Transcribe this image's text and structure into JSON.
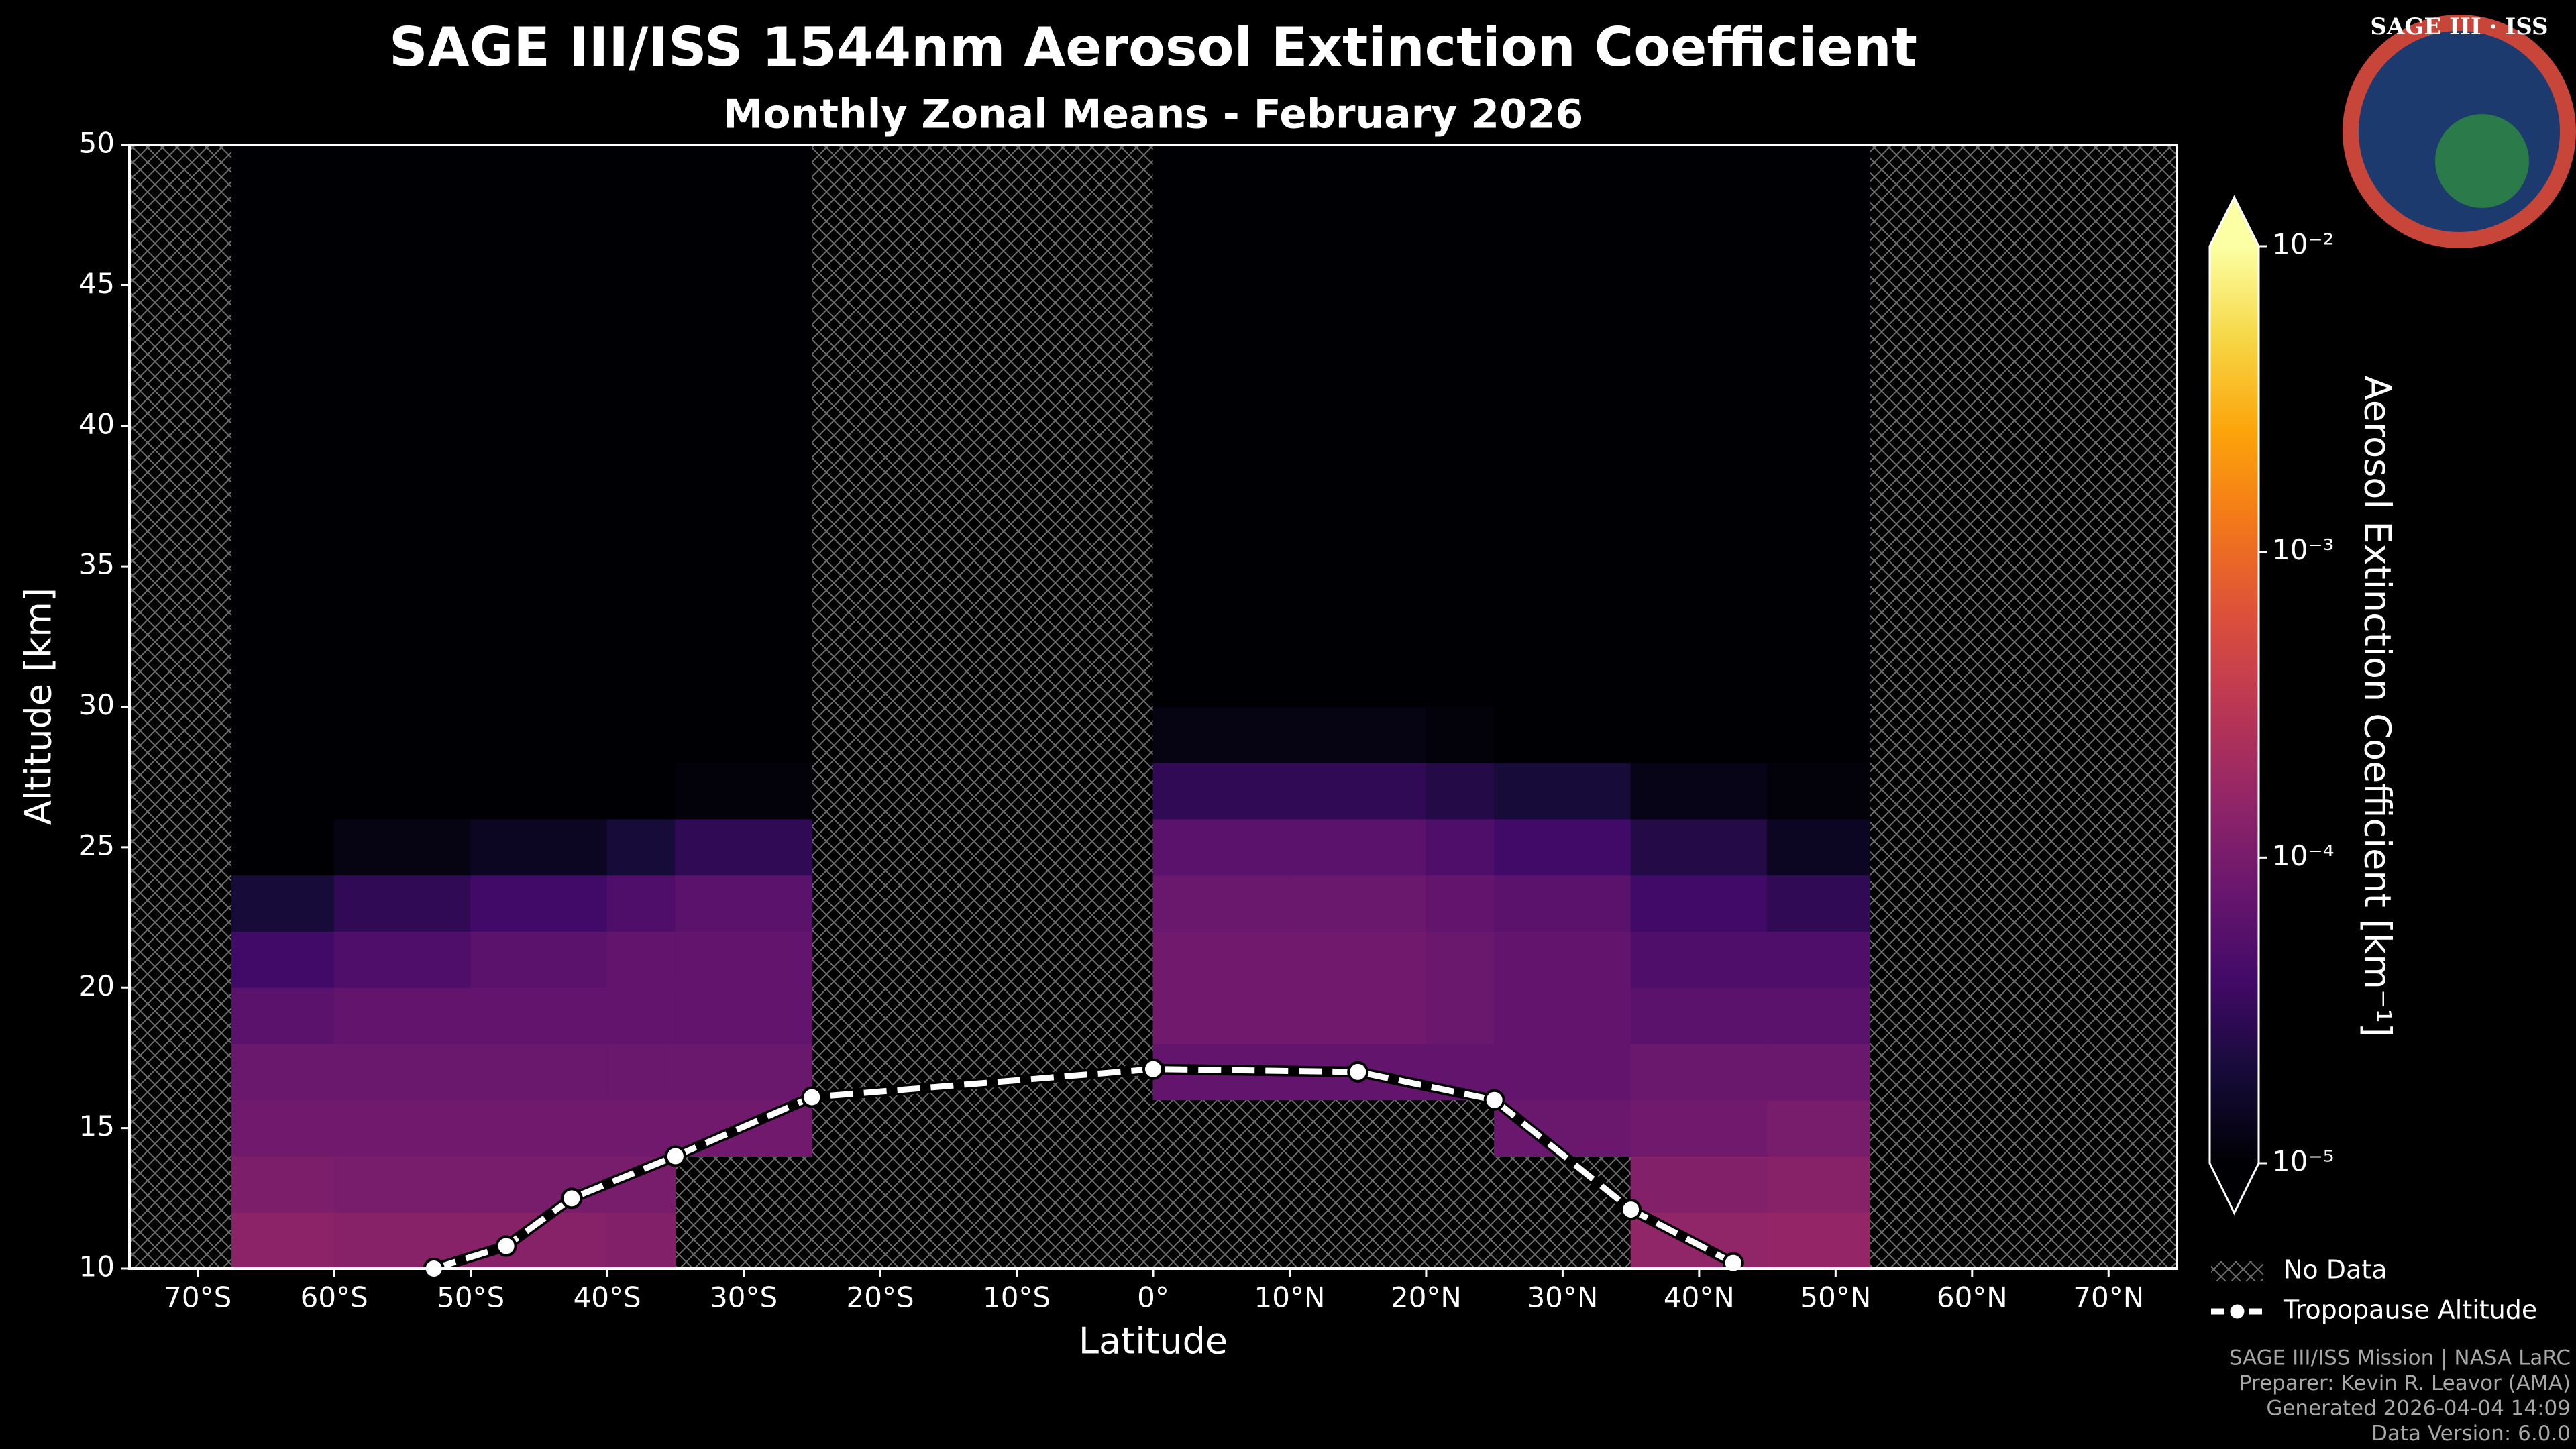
{
  "chart_data": {
    "type": "heatmap",
    "title": "SAGE III/ISS 1544nm Aerosol Extinction Coefficient",
    "subtitle": "Monthly Zonal Means - February 2026",
    "x_label": "Latitude",
    "y_label": "Altitude [km]",
    "xlim": [
      -75,
      75
    ],
    "ylim": [
      10,
      50
    ],
    "xticks": [
      {
        "value": -70,
        "label": "70°S"
      },
      {
        "value": -60,
        "label": "60°S"
      },
      {
        "value": -50,
        "label": "50°S"
      },
      {
        "value": -40,
        "label": "40°S"
      },
      {
        "value": -30,
        "label": "30°S"
      },
      {
        "value": -20,
        "label": "20°S"
      },
      {
        "value": -10,
        "label": "10°S"
      },
      {
        "value": 0,
        "label": "0°"
      },
      {
        "value": 10,
        "label": "10°N"
      },
      {
        "value": 20,
        "label": "20°N"
      },
      {
        "value": 30,
        "label": "30°N"
      },
      {
        "value": 40,
        "label": "40°N"
      },
      {
        "value": 50,
        "label": "50°N"
      },
      {
        "value": 60,
        "label": "60°N"
      },
      {
        "value": 70,
        "label": "70°N"
      }
    ],
    "yticks": [
      10,
      15,
      20,
      25,
      30,
      35,
      40,
      45,
      50
    ],
    "x_edges": [
      -75,
      -67.5,
      -60,
      -50,
      -40,
      -35,
      -25,
      0,
      10,
      20,
      25,
      35,
      45,
      52.5,
      75
    ],
    "y_edges": [
      10,
      12,
      14,
      16,
      18,
      20,
      22,
      24,
      26,
      28,
      30,
      50
    ],
    "z": [
      [
        null,
        0.00014,
        0.00013,
        0.00013,
        0.00012,
        null,
        null,
        null,
        null,
        null,
        null,
        0.00015,
        0.00016,
        null
      ],
      [
        null,
        0.00011,
        0.0001,
        0.0001,
        0.0001,
        null,
        null,
        null,
        null,
        null,
        null,
        0.00012,
        0.00013,
        null
      ],
      [
        null,
        9e-05,
        9e-05,
        9e-05,
        9e-05,
        9e-05,
        null,
        null,
        null,
        null,
        8e-05,
        9e-05,
        0.0001,
        null
      ],
      [
        null,
        8e-05,
        8e-05,
        8e-05,
        8e-05,
        8e-05,
        null,
        7e-05,
        7e-05,
        7e-05,
        7e-05,
        8e-05,
        8e-05,
        null
      ],
      [
        null,
        6e-05,
        7e-05,
        7e-05,
        7e-05,
        7e-05,
        null,
        9e-05,
        9e-05,
        8e-05,
        7e-05,
        6e-05,
        6e-05,
        null
      ],
      [
        null,
        4e-05,
        5e-05,
        6e-05,
        7e-05,
        7e-05,
        null,
        9e-05,
        9e-05,
        8e-05,
        7e-05,
        5e-05,
        5e-05,
        null
      ],
      [
        null,
        2e-05,
        3e-05,
        4e-05,
        5e-05,
        6e-05,
        null,
        8e-05,
        8e-05,
        7e-05,
        6e-05,
        4e-05,
        3e-05,
        null
      ],
      [
        null,
        1e-05,
        1.2e-05,
        1.5e-05,
        2e-05,
        3e-05,
        null,
        6e-05,
        6e-05,
        5e-05,
        4e-05,
        2.5e-05,
        1.5e-05,
        null
      ],
      [
        null,
        1e-05,
        1e-05,
        1e-05,
        1e-05,
        1.1e-05,
        null,
        3e-05,
        3e-05,
        2.5e-05,
        2e-05,
        1.3e-05,
        1.1e-05,
        null
      ],
      [
        null,
        1e-05,
        1e-05,
        1e-05,
        1e-05,
        1e-05,
        null,
        1.2e-05,
        1.2e-05,
        1.1e-05,
        1e-05,
        1e-05,
        1e-05,
        null
      ],
      [
        null,
        1e-05,
        1e-05,
        1e-05,
        1e-05,
        1e-05,
        null,
        1e-05,
        1e-05,
        1e-05,
        1e-05,
        1e-05,
        1e-05,
        null
      ]
    ],
    "colorscale": "inferno",
    "color_log": true,
    "clim": [
      1e-05,
      0.01
    ],
    "cticks": [
      {
        "value": 1e-05,
        "label": "10⁻⁵"
      },
      {
        "value": 0.0001,
        "label": "10⁻⁴"
      },
      {
        "value": 0.001,
        "label": "10⁻³"
      },
      {
        "value": 0.01,
        "label": "10⁻²"
      }
    ],
    "colorbar_label": "Aerosol Extinction Coefficient [km⁻¹]",
    "series": [
      {
        "name": "Tropopause Altitude",
        "color": "#ffffff",
        "x": [
          -52.7,
          -47.4,
          -42.6,
          -35,
          -25,
          0,
          15,
          25,
          35,
          42.5
        ],
        "values": [
          10.0,
          10.8,
          12.5,
          14.0,
          16.1,
          17.1,
          17.0,
          16.0,
          12.1,
          10.2
        ]
      }
    ],
    "no_data_label": "No Data",
    "logo_text": "SAGE III · ISS",
    "credits": [
      "SAGE III/ISS Mission | NASA LaRC",
      "Preparer: Kevin R. Leavor (AMA)",
      "Generated 2026-04-04 14:09",
      "Data Version: 6.0.0"
    ]
  }
}
